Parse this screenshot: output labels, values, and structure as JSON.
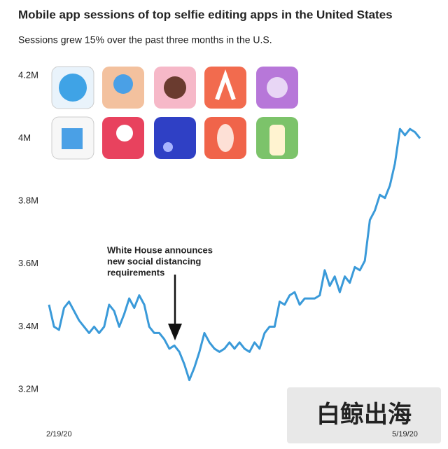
{
  "chart_data": {
    "type": "line",
    "title": "Mobile app sessions of top selfie editing apps in the United States",
    "subtitle": "Sessions grew 15% over the past three months in the U.S.",
    "annotation": [
      "White House announces",
      "new social distancing",
      "requirements"
    ],
    "watermark": "白鲸出海",
    "categories": [
      null,
      null,
      "2/19/20",
      null,
      null,
      null,
      null,
      null,
      null,
      null,
      null,
      null,
      null,
      null,
      null,
      null,
      null,
      null,
      null,
      null,
      null,
      null,
      null,
      null,
      null,
      null,
      null,
      null,
      null,
      null,
      null,
      null,
      null,
      null,
      null,
      null,
      null,
      null,
      null,
      null,
      null,
      null,
      null,
      null,
      null,
      null,
      null,
      null,
      null,
      null,
      null,
      null,
      null,
      null,
      null,
      null,
      null,
      null,
      null,
      null,
      null,
      null,
      null,
      null,
      null,
      null,
      null,
      null,
      null,
      null,
      null,
      "5/19/20",
      null,
      null,
      null
    ],
    "series": [
      {
        "color": "#3a9ad9",
        "values": [
          3470000,
          3400000,
          3390000,
          3460000,
          3480000,
          3450000,
          3420000,
          3400000,
          3380000,
          3400000,
          3380000,
          3400000,
          3470000,
          3450000,
          3400000,
          3440000,
          3490000,
          3460000,
          3500000,
          3470000,
          3400000,
          3380000,
          3380000,
          3360000,
          3330000,
          3340000,
          3320000,
          3280000,
          3230000,
          3270000,
          3320000,
          3380000,
          3350000,
          3330000,
          3320000,
          3330000,
          3350000,
          3330000,
          3350000,
          3330000,
          3320000,
          3350000,
          3330000,
          3380000,
          3400000,
          3400000,
          3480000,
          3470000,
          3500000,
          3510000,
          3470000,
          3490000,
          3490000,
          3490000,
          3500000,
          3580000,
          3530000,
          3560000,
          3510000,
          3560000,
          3540000,
          3590000,
          3580000,
          3610000,
          3740000,
          3770000,
          3820000,
          3810000,
          3850000,
          3920000,
          4030000,
          4010000,
          4030000,
          4020000,
          4000000
        ]
      }
    ],
    "ylim": [
      3180000,
      4240000
    ],
    "yticks": [
      {
        "value": 3200000,
        "label": "3.2M"
      },
      {
        "value": 3400000,
        "label": "3.4M"
      },
      {
        "value": 3600000,
        "label": "3.6M"
      },
      {
        "value": 3800000,
        "label": "3.8M"
      },
      {
        "value": 4000000,
        "label": "4M"
      },
      {
        "value": 4200000,
        "label": "4.2M"
      }
    ],
    "grid": false
  }
}
